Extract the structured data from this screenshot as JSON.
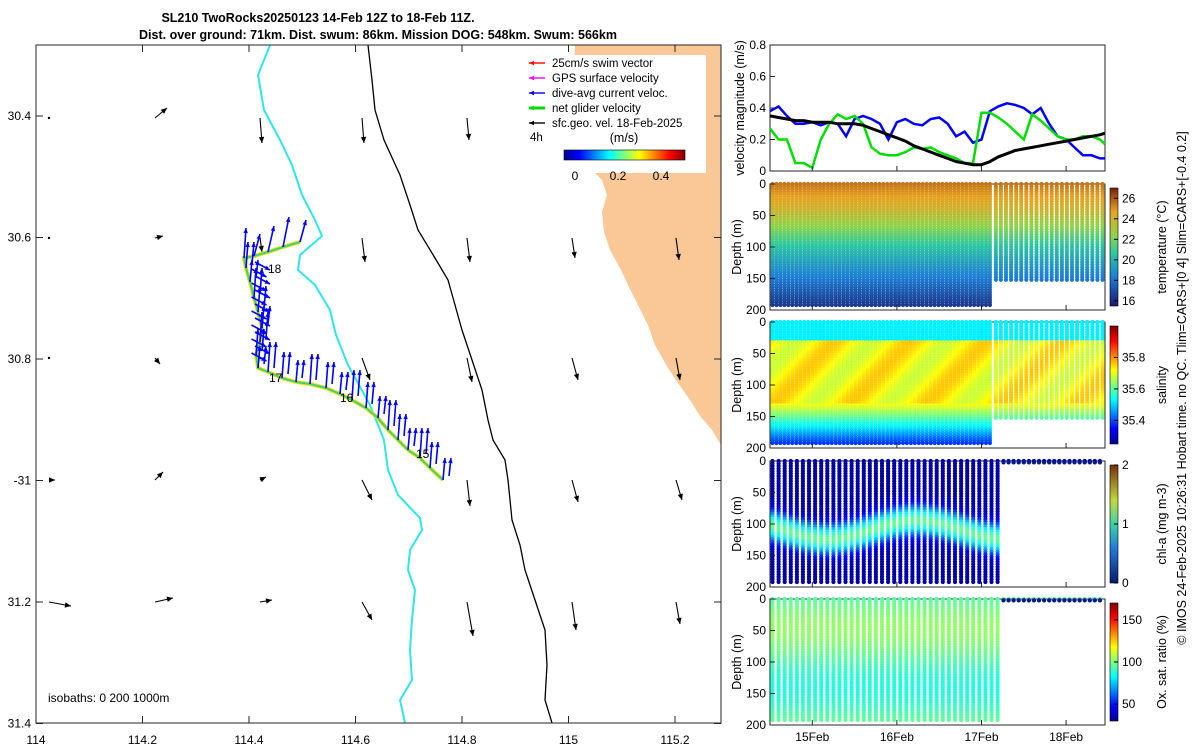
{
  "title": {
    "line1": "SL210 TwoRocks20250123 14-Feb 12Z to 18-Feb 11Z.",
    "line2": "Dist. over ground: 71km. Dist. swum: 86km. Mission DOG: 548km. Swum: 566km"
  },
  "map": {
    "lon_ticks": [
      "114",
      "114.2",
      "114.4",
      "114.6",
      "114.8",
      "115",
      "115.2"
    ],
    "lat_ticks": [
      "30.4",
      "30.6",
      "30.8",
      "-31",
      "31.2",
      "31.4"
    ],
    "day_labels": [
      "18",
      "17",
      "16",
      "15"
    ],
    "isobath_text": "isobaths: 0   200  1000m",
    "legend": {
      "items": [
        {
          "label": "25cm/s swim vector",
          "color": "#ff0000"
        },
        {
          "label": "GPS surface velocity",
          "color": "#ff00ff"
        },
        {
          "label": "dive-avg current veloc.",
          "color": "#0000ff"
        },
        {
          "label": "net glider velocity",
          "color": "#00dd00"
        },
        {
          "label": "sfc.geo. vel. 18-Feb-2025",
          "color": "#000000"
        }
      ],
      "scale_label": "4h",
      "colorbar_title": "(m/s)",
      "colorbar_ticks": [
        "0",
        "0.2",
        "0.4"
      ]
    },
    "colors": {
      "land": "#f9c896",
      "isobath_200": "#2ee6e6",
      "isobath_1000": "#000000",
      "track": "#0000ff"
    }
  },
  "chart_data": [
    {
      "type": "line",
      "ylabel": "velocity magnitude (m/s)",
      "ylim": [
        0,
        0.8
      ],
      "yticks": [
        "0",
        "0.2",
        "0.4",
        "0.6",
        "0.8"
      ],
      "x": [
        14.5,
        14.6,
        14.7,
        14.8,
        14.9,
        15.0,
        15.1,
        15.2,
        15.3,
        15.4,
        15.5,
        15.6,
        15.7,
        15.8,
        15.9,
        16.0,
        16.1,
        16.2,
        16.3,
        16.4,
        16.5,
        16.6,
        16.7,
        16.8,
        16.9,
        17.0,
        17.1,
        17.2,
        17.3,
        17.4,
        17.5,
        17.6,
        17.7,
        17.8,
        17.9,
        18.0,
        18.1,
        18.2,
        18.3,
        18.4,
        18.46
      ],
      "series": [
        {
          "name": "dive-avg current",
          "color": "#0000ff",
          "values": [
            0.38,
            0.41,
            0.35,
            0.3,
            0.3,
            0.31,
            0.29,
            0.31,
            0.3,
            0.22,
            0.33,
            0.35,
            0.33,
            0.3,
            0.2,
            0.31,
            0.33,
            0.3,
            0.29,
            0.33,
            0.34,
            0.3,
            0.22,
            0.25,
            0.18,
            0.2,
            0.38,
            0.41,
            0.43,
            0.42,
            0.4,
            0.36,
            0.4,
            0.3,
            0.22,
            0.2,
            0.15,
            0.1,
            0.1,
            0.08,
            0.08
          ]
        },
        {
          "name": "net glider velocity",
          "color": "#00dd00",
          "values": [
            0.27,
            0.2,
            0.2,
            0.05,
            0.05,
            0.02,
            0.2,
            0.3,
            0.36,
            0.33,
            0.35,
            0.3,
            0.15,
            0.11,
            0.1,
            0.1,
            0.12,
            0.15,
            0.14,
            0.15,
            0.12,
            0.1,
            0.08,
            0.05,
            0.05,
            0.37,
            0.37,
            0.34,
            0.3,
            0.25,
            0.2,
            0.36,
            0.32,
            0.27,
            0.22,
            0.2,
            0.2,
            0.22,
            0.22,
            0.2,
            0.17
          ]
        },
        {
          "name": "sfc.geo. vel.",
          "color": "#000000",
          "values": [
            0.35,
            0.34,
            0.33,
            0.32,
            0.32,
            0.31,
            0.31,
            0.31,
            0.3,
            0.3,
            0.3,
            0.29,
            0.27,
            0.25,
            0.23,
            0.21,
            0.19,
            0.16,
            0.14,
            0.12,
            0.1,
            0.08,
            0.06,
            0.05,
            0.04,
            0.04,
            0.06,
            0.09,
            0.11,
            0.13,
            0.14,
            0.15,
            0.16,
            0.17,
            0.18,
            0.19,
            0.2,
            0.21,
            0.22,
            0.23,
            0.24
          ]
        }
      ]
    },
    {
      "type": "scatter",
      "variable": "temperature",
      "clabel": "temperature (°C)",
      "ylabel": "Depth (m)",
      "ylim": [
        0,
        200
      ],
      "yticks": [
        "0",
        "50",
        "100",
        "150",
        "200"
      ],
      "clim": [
        15.5,
        27
      ],
      "cticks": [
        "16",
        "18",
        "20",
        "22",
        "24",
        "26"
      ],
      "profile_x_range": [
        14.5,
        18.46
      ],
      "profiles": 56,
      "max_depth_before": 195,
      "max_depth_after": 155,
      "depth_change_at": 17.13,
      "profile_model": {
        "surface": 25.5,
        "mid": 22.5,
        "deep": 16.5
      }
    },
    {
      "type": "scatter",
      "variable": "salinity",
      "clabel": "salinity",
      "ylabel": "Depth (m)",
      "ylim": [
        0,
        200
      ],
      "yticks": [
        "0",
        "50",
        "100",
        "150",
        "200"
      ],
      "clim": [
        35.25,
        36.0
      ],
      "cticks": [
        "35.4",
        "35.6",
        "35.8"
      ],
      "profile_x_range": [
        14.5,
        18.46
      ],
      "profiles": 56,
      "max_depth_before": 195,
      "max_depth_after": 155,
      "depth_change_at": 17.13,
      "profile_model": {
        "surface": 35.52,
        "mid": 35.72,
        "deep": 35.35
      }
    },
    {
      "type": "scatter",
      "variable": "chl-a",
      "clabel": "chl-a (mg m-3)",
      "ylabel": "Depth (m)",
      "ylim": [
        0,
        200
      ],
      "yticks": [
        "0",
        "50",
        "100",
        "150",
        "200"
      ],
      "clim": [
        0,
        2
      ],
      "cticks": [
        "0",
        "1",
        "2"
      ],
      "profile_x_range": [
        14.5,
        18.46
      ],
      "profiles": 38,
      "max_depth_before": 195,
      "depth_change_at": 17.22,
      "profile_model": {
        "surface": 0.05,
        "peak": 0.9,
        "peak_depth": 110
      }
    },
    {
      "type": "scatter",
      "variable": "oxygen",
      "clabel": "Ox. sat. ratio (%)",
      "ylabel": "Depth (m)",
      "ylim": [
        0,
        200
      ],
      "yticks": [
        "0",
        "50",
        "100",
        "150",
        "200"
      ],
      "clim": [
        30,
        170
      ],
      "cticks": [
        "50",
        "100",
        "150"
      ],
      "profile_x_range": [
        14.5,
        18.46
      ],
      "profiles": 38,
      "max_depth_before": 195,
      "depth_change_at": 17.22,
      "profile_model": {
        "value": 95
      }
    }
  ],
  "time_axis": {
    "ticks": [
      "15Feb",
      "16Feb",
      "17Feb",
      "18Feb"
    ],
    "tick_values": [
      15,
      16,
      17,
      18
    ],
    "range": [
      14.5,
      18.46
    ]
  },
  "side_note": "© IMOS 24-Feb-2025 10:26:31 Hobart time. no QC. Tlim=CARS+[0 4] Slim=CARS+[-0.4 0.2]"
}
